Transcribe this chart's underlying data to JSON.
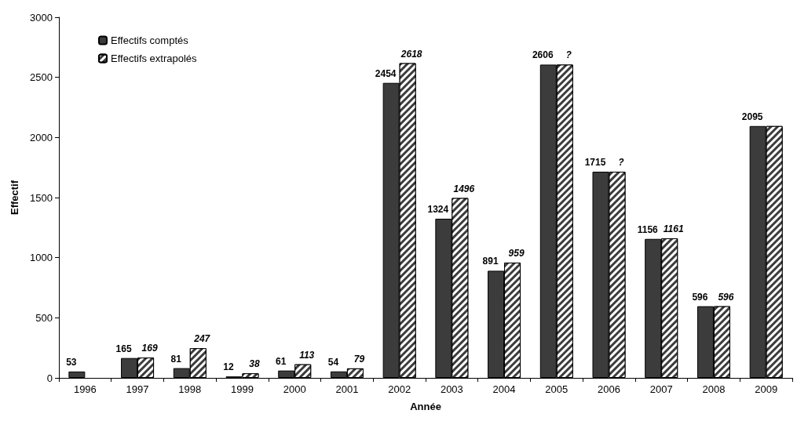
{
  "chart_data": {
    "type": "bar",
    "xlabel": "Année",
    "ylabel": "Effectif",
    "categories": [
      "1996",
      "1997",
      "1998",
      "1999",
      "2000",
      "2001",
      "2002",
      "2003",
      "2004",
      "2005",
      "2006",
      "2007",
      "2008",
      "2009"
    ],
    "series": [
      {
        "name": "Effectifs comptés",
        "color": "#3c3c3c",
        "values": [
          53,
          165,
          81,
          12,
          61,
          54,
          2454,
          1324,
          891,
          2606,
          1715,
          1156,
          596,
          2095
        ],
        "value_labels": [
          "53",
          "165",
          "81",
          "12",
          "61",
          "54",
          "2454",
          "1324",
          "891",
          "2606",
          "1715",
          "1156",
          "596",
          "2095"
        ]
      },
      {
        "name": "Effectifs extrapolés",
        "color": "#3c3c3c",
        "values": [
          null,
          169,
          247,
          38,
          113,
          79,
          2618,
          1496,
          959,
          2606,
          1715,
          1161,
          596,
          2095
        ],
        "value_labels": [
          null,
          "169",
          "247",
          "38",
          "113",
          "79",
          "2618",
          "1496",
          "959",
          "?",
          "?",
          "1161",
          "596",
          null
        ]
      }
    ],
    "ylim": [
      0,
      3000
    ],
    "yticks": [
      0,
      500,
      1000,
      1500,
      2000,
      2500,
      3000
    ],
    "grid": false,
    "legend": "top left"
  }
}
